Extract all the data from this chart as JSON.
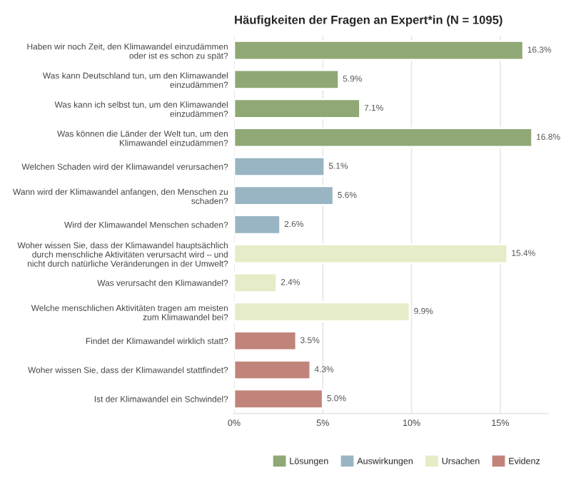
{
  "chart_data": {
    "type": "bar",
    "orientation": "horizontal",
    "title": "Häufigkeiten der Fragen an Expert*in (N = 1095)",
    "categories": [
      "Haben wir noch Zeit, den Klimawandel einzudämmen\noder ist es schon zu spät?",
      "Was kann Deutschland tun, um den Klimawandel\neinzudämmen?",
      "Was kann ich selbst tun, um den Klimawandel\neinzudämmen?",
      "Was können die Länder der Welt tun, um den\nKlimawandel einzudämmen?",
      "Welchen Schaden wird der Klimawandel verursachen?",
      "Wann wird der Klimawandel anfangen, den Menschen zu\nschaden?",
      "Wird der Klimawandel Menschen schaden?",
      "Woher wissen Sie, dass der Klimawandel hauptsächlich\ndurch menschliche Aktivitäten verursacht wird – und\nnicht durch natürliche Veränderungen in der Umwelt?",
      "Was verursacht den Klimawandel?",
      "Welche menschlichen Aktivitäten tragen am meisten\nzum Klimawandel bei?",
      "Findet der Klimawandel wirklich statt?",
      "Woher wissen Sie, dass der Klimawandel stattfindet?",
      "Ist der Klimawandel ein Schwindel?"
    ],
    "series": [
      {
        "name": "Lösungen",
        "color": "#8fa876",
        "values": [
          16.3,
          5.9,
          7.1,
          16.8,
          null,
          null,
          null,
          null,
          null,
          null,
          null,
          null,
          null
        ],
        "value_labels": [
          "16.3%",
          "5.9%",
          "7.1%",
          "16.8%",
          null,
          null,
          null,
          null,
          null,
          null,
          null,
          null,
          null
        ]
      },
      {
        "name": "Auswirkungen",
        "color": "#99b5c4",
        "values": [
          null,
          null,
          null,
          null,
          5.1,
          5.6,
          2.6,
          null,
          null,
          null,
          null,
          null,
          null
        ],
        "value_labels": [
          null,
          null,
          null,
          null,
          "5.1%",
          "5.6%",
          "2.6%",
          null,
          null,
          null,
          null,
          null,
          null
        ]
      },
      {
        "name": "Ursachen",
        "color": "#e6ecc7",
        "values": [
          null,
          null,
          null,
          null,
          null,
          null,
          null,
          15.4,
          2.4,
          9.9,
          null,
          null,
          null
        ],
        "value_labels": [
          null,
          null,
          null,
          null,
          null,
          null,
          null,
          "15.4%",
          "2.4%",
          "9.9%",
          null,
          null,
          null
        ]
      },
      {
        "name": "Evidenz",
        "color": "#c1847a",
        "values": [
          null,
          null,
          null,
          null,
          null,
          null,
          null,
          null,
          null,
          null,
          3.5,
          4.3,
          5.0
        ],
        "value_labels": [
          null,
          null,
          null,
          null,
          null,
          null,
          null,
          null,
          null,
          null,
          "3.5%",
          "4.3%",
          "5.0%"
        ]
      }
    ],
    "xlim": [
      0,
      17.7
    ],
    "xticks": [
      {
        "value": 0,
        "label": "0%"
      },
      {
        "value": 5,
        "label": "5%"
      },
      {
        "value": 10,
        "label": "10%"
      },
      {
        "value": 15,
        "label": "15%"
      }
    ],
    "grid": "x",
    "legend": "bottom"
  }
}
